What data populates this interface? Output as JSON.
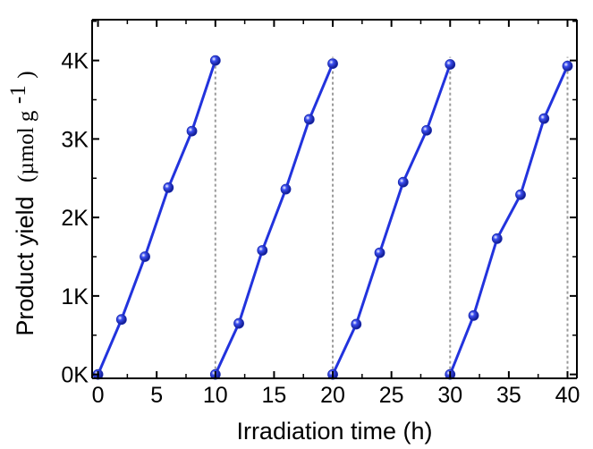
{
  "chart_data": {
    "type": "line",
    "xlabel": "Irradiation time (h)",
    "ylabel_main": "Product yield",
    "ylabel_unit": "(µmol g",
    "ylabel_sup": "-1",
    "ylabel_close": ")",
    "xlim": [
      -0.5,
      40.8
    ],
    "ylim": [
      -50,
      4520
    ],
    "x_ticks": [
      0,
      5,
      10,
      15,
      20,
      25,
      30,
      35,
      40
    ],
    "x_tick_labels": [
      "0",
      "5",
      "10",
      "15",
      "20",
      "25",
      "30",
      "35",
      "40"
    ],
    "y_ticks": [
      0,
      1000,
      2000,
      3000,
      4000
    ],
    "y_tick_labels": [
      "0K",
      "1K",
      "2K",
      "3K",
      "4K"
    ],
    "colors": {
      "series": "#2233dd",
      "marker": "#3b4ef0",
      "guide": "#9a9a9a"
    },
    "series": [
      {
        "x": [
          0,
          2,
          4,
          6,
          8,
          10
        ],
        "y": [
          0,
          700,
          1500,
          2380,
          3100,
          4000
        ]
      },
      {
        "x": [
          10,
          12,
          14,
          16,
          18,
          20
        ],
        "y": [
          0,
          650,
          1580,
          2360,
          3250,
          3960
        ]
      },
      {
        "x": [
          20,
          22,
          24,
          26,
          28,
          30
        ],
        "y": [
          0,
          640,
          1550,
          2450,
          3110,
          3950
        ]
      },
      {
        "x": [
          30,
          32,
          34,
          36,
          38,
          40
        ],
        "y": [
          0,
          750,
          1730,
          2290,
          3260,
          3930
        ]
      }
    ],
    "vertical_guides": [
      10,
      20,
      30,
      40
    ]
  }
}
